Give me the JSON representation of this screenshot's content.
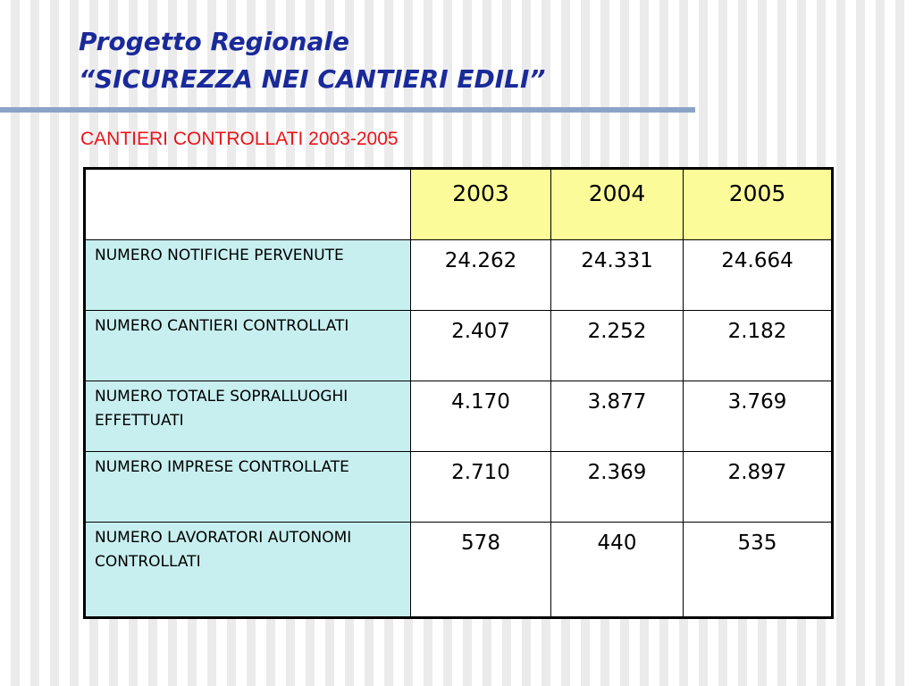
{
  "header": {
    "title": [
      "Progetto Regionale",
      "“SICUREZZA NEI CANTIERI EDILI”"
    ],
    "subtitle": "CANTIERI CONTROLLATI 2003-2005"
  },
  "table": {
    "columns": [
      "2003",
      "2004",
      "2005"
    ],
    "rows": [
      {
        "label": "NUMERO NOTIFICHE PERVENUTE",
        "values": [
          "24.262",
          "24.331",
          "24.664"
        ]
      },
      {
        "label": "NUMERO CANTIERI CONTROLLATI",
        "values": [
          "2.407",
          "2.252",
          "2.182"
        ]
      },
      {
        "label": "NUMERO TOTALE SOPRALLUOGHI EFFETTUATI",
        "values": [
          "4.170",
          "3.877",
          "3.769"
        ]
      },
      {
        "label": "NUMERO IMPRESE CONTROLLATE",
        "values": [
          "2.710",
          "2.369",
          "2.897"
        ]
      },
      {
        "label": "NUMERO LAVORATORI AUTONOMI CONTROLLATI",
        "values": [
          "578",
          "440",
          "535"
        ]
      }
    ]
  }
}
